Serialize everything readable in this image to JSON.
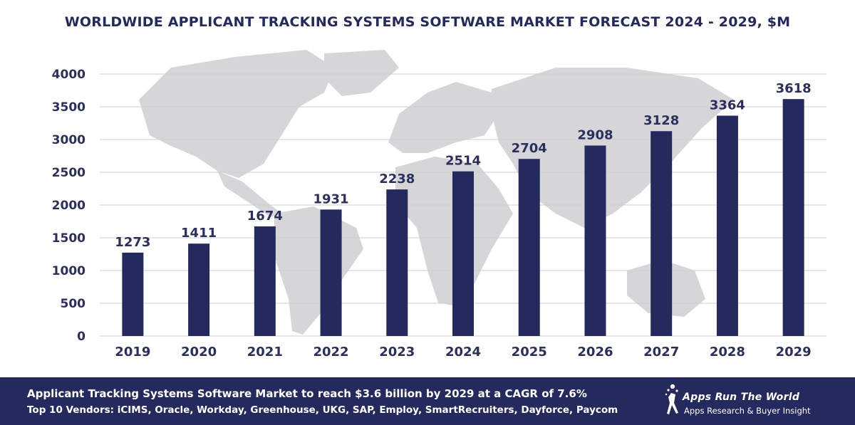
{
  "colors": {
    "bar": "#252a5e",
    "title": "#252a5e",
    "label": "#2b2f5e",
    "grid": "#cfcfcf",
    "map": "#d6d6d9",
    "footer_bg": "#252a5e",
    "footer_text": "#ffffff"
  },
  "chart_data": {
    "type": "bar",
    "title": "WORLDWIDE APPLICANT TRACKING SYSTEMS SOFTWARE MARKET FORECAST 2024 - 2029, $M",
    "categories": [
      "2019",
      "2020",
      "2021",
      "2022",
      "2023",
      "2024",
      "2025",
      "2026",
      "2027",
      "2028",
      "2029"
    ],
    "values": [
      1273,
      1411,
      1674,
      1931,
      2238,
      2514,
      2704,
      2908,
      3128,
      3364,
      3618
    ],
    "data_labels": [
      "1273",
      "1411",
      "1674",
      "1931",
      "2238",
      "2514",
      "2704",
      "2908",
      "3128",
      "3364",
      "3618"
    ],
    "yticks": [
      "0",
      "500",
      "1000",
      "1500",
      "2000",
      "2500",
      "3000",
      "3500",
      "4000"
    ],
    "ylim": [
      0,
      4000
    ],
    "xlabel": "",
    "ylabel": "",
    "grid": true,
    "legend": "none"
  },
  "footer": {
    "headline": "Applicant Tracking Systems Software Market to reach $3.6 billion by 2029 at a CAGR of 7.6%",
    "vendors": "Top 10 Vendors: iCIMS, Oracle, Workday, Greenhouse, UKG, SAP, Employ, SmartRecruiters, Dayforce, Paycom"
  },
  "brand": {
    "name": "Apps Run The World",
    "tagline": "Apps Research & Buyer Insight",
    "logo_icon": "running-figure-icon"
  }
}
